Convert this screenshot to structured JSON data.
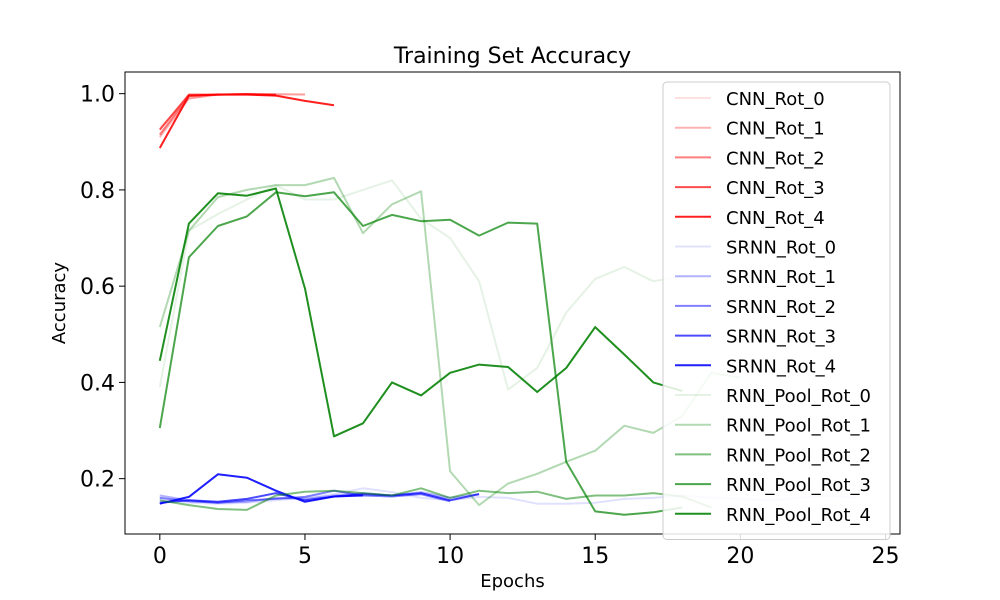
{
  "chart_data": {
    "type": "line",
    "title": "Training Set Accuracy",
    "xlabel": "Epochs",
    "ylabel": "Accuracy",
    "xlim": [
      -1.2,
      25.5
    ],
    "ylim": [
      0.085,
      1.045
    ],
    "xticks": [
      0,
      5,
      10,
      15,
      20,
      25
    ],
    "yticks": [
      0.2,
      0.4,
      0.6,
      0.8,
      1.0
    ],
    "ytick_labels": [
      "0.2",
      "0.4",
      "0.6",
      "0.8",
      "1.0"
    ],
    "grid": false,
    "legend_position": "top-right",
    "series": [
      {
        "name": "CNN_Rot_0",
        "color": "#ff0000",
        "opacity": 0.12,
        "x": [
          0,
          1,
          2,
          3,
          4,
          5
        ],
        "y": [
          0.93,
          0.99,
          0.999,
          0.999,
          0.998,
          0.999
        ]
      },
      {
        "name": "CNN_Rot_1",
        "color": "#ff0000",
        "opacity": 0.3,
        "x": [
          0,
          1,
          2,
          3,
          4,
          5
        ],
        "y": [
          0.91,
          0.99,
          0.998,
          0.999,
          0.999,
          0.998
        ]
      },
      {
        "name": "CNN_Rot_2",
        "color": "#ff0000",
        "opacity": 0.5,
        "x": [
          0,
          1,
          2,
          3,
          4
        ],
        "y": [
          0.915,
          0.995,
          0.998,
          0.999,
          0.998
        ]
      },
      {
        "name": "CNN_Rot_3",
        "color": "#ff0000",
        "opacity": 0.7,
        "x": [
          0,
          1,
          2,
          3,
          4
        ],
        "y": [
          0.925,
          0.998,
          0.998,
          0.999,
          0.997
        ]
      },
      {
        "name": "CNN_Rot_4",
        "color": "#ff0000",
        "opacity": 0.88,
        "x": [
          0,
          1,
          2,
          3,
          4,
          5,
          6
        ],
        "y": [
          0.887,
          0.996,
          0.998,
          0.998,
          0.996,
          0.985,
          0.976
        ]
      },
      {
        "name": "SRNN_Rot_0",
        "color": "#0000ff",
        "opacity": 0.12,
        "x": [
          0,
          1,
          2,
          3,
          4,
          5,
          6,
          7,
          8,
          9,
          10,
          11,
          12,
          13,
          14,
          15,
          16,
          17,
          18,
          19,
          20,
          21,
          22,
          23,
          24
        ],
        "y": [
          0.155,
          0.15,
          0.148,
          0.15,
          0.155,
          0.16,
          0.168,
          0.18,
          0.172,
          0.16,
          0.155,
          0.162,
          0.16,
          0.148,
          0.148,
          0.15,
          0.158,
          0.16,
          0.165,
          0.16,
          0.158,
          0.155,
          0.16,
          0.165,
          0.16
        ]
      },
      {
        "name": "SRNN_Rot_1",
        "color": "#0000ff",
        "opacity": 0.3,
        "x": [
          0,
          1,
          2,
          3,
          4,
          5,
          6,
          7,
          8,
          9,
          10,
          11
        ],
        "y": [
          0.165,
          0.155,
          0.15,
          0.152,
          0.16,
          0.158,
          0.165,
          0.17,
          0.165,
          0.172,
          0.16,
          0.168
        ]
      },
      {
        "name": "SRNN_Rot_2",
        "color": "#0000ff",
        "opacity": 0.5,
        "x": [
          0,
          1,
          2,
          3,
          4,
          5,
          6,
          7,
          8,
          9,
          10
        ],
        "y": [
          0.16,
          0.153,
          0.15,
          0.155,
          0.158,
          0.162,
          0.175,
          0.165,
          0.163,
          0.168,
          0.153
        ]
      },
      {
        "name": "SRNN_Rot_3",
        "color": "#0000ff",
        "opacity": 0.7,
        "x": [
          0,
          1,
          2,
          3,
          4,
          5,
          6,
          7,
          8,
          9,
          10,
          11
        ],
        "y": [
          0.15,
          0.155,
          0.152,
          0.158,
          0.17,
          0.155,
          0.163,
          0.168,
          0.165,
          0.17,
          0.155,
          0.168
        ]
      },
      {
        "name": "SRNN_Rot_4",
        "color": "#0000ff",
        "opacity": 0.88,
        "x": [
          0,
          1,
          2,
          3,
          4,
          5,
          6,
          7
        ],
        "y": [
          0.148,
          0.162,
          0.209,
          0.202,
          0.175,
          0.152,
          0.163,
          0.165
        ]
      },
      {
        "name": "RNN_Pool_Rot_0",
        "color": "#008000",
        "opacity": 0.1,
        "x": [
          0,
          1,
          2,
          3,
          4,
          5,
          6,
          7,
          8,
          9,
          10,
          11,
          12,
          13,
          14,
          15,
          16,
          17,
          18
        ],
        "y": [
          0.39,
          0.715,
          0.75,
          0.78,
          0.81,
          0.78,
          0.78,
          0.8,
          0.82,
          0.74,
          0.7,
          0.61,
          0.385,
          0.43,
          0.545,
          0.615,
          0.64,
          0.61,
          0.62
        ]
      },
      {
        "name": "RNN_Pool_Rot_1",
        "color": "#008000",
        "opacity": 0.3,
        "x": [
          0,
          1,
          2,
          3,
          4,
          5,
          6,
          7,
          8,
          9,
          10,
          11,
          12,
          13,
          14,
          15,
          16,
          17,
          18,
          19,
          20
        ],
        "y": [
          0.515,
          0.715,
          0.785,
          0.8,
          0.81,
          0.81,
          0.825,
          0.71,
          0.77,
          0.797,
          0.215,
          0.145,
          0.19,
          0.21,
          0.235,
          0.258,
          0.31,
          0.295,
          0.33,
          0.42,
          0.41
        ]
      },
      {
        "name": "RNN_Pool_Rot_2",
        "color": "#008000",
        "opacity": 0.5,
        "x": [
          0,
          1,
          2,
          3,
          4,
          5,
          6,
          7,
          8,
          9,
          10,
          11,
          12,
          13,
          14,
          15,
          16,
          17,
          18,
          19
        ],
        "y": [
          0.155,
          0.145,
          0.137,
          0.135,
          0.165,
          0.173,
          0.175,
          0.17,
          0.165,
          0.18,
          0.16,
          0.175,
          0.17,
          0.173,
          0.158,
          0.165,
          0.165,
          0.17,
          0.163,
          0.14
        ]
      },
      {
        "name": "RNN_Pool_Rot_3",
        "color": "#008000",
        "opacity": 0.7,
        "x": [
          0,
          1,
          2,
          3,
          4,
          5,
          6,
          7,
          8,
          9,
          10,
          11,
          12,
          13,
          14,
          15,
          16,
          17,
          18
        ],
        "y": [
          0.305,
          0.66,
          0.725,
          0.745,
          0.795,
          0.787,
          0.795,
          0.725,
          0.748,
          0.735,
          0.738,
          0.705,
          0.732,
          0.73,
          0.235,
          0.132,
          0.125,
          0.13,
          0.14
        ]
      },
      {
        "name": "RNN_Pool_Rot_4",
        "color": "#008000",
        "opacity": 0.88,
        "x": [
          0,
          1,
          2,
          3,
          4,
          5,
          6,
          7,
          8,
          9,
          10,
          11,
          12,
          13,
          14,
          15,
          16,
          17,
          18
        ],
        "y": [
          0.445,
          0.73,
          0.793,
          0.788,
          0.803,
          0.595,
          0.288,
          0.315,
          0.4,
          0.373,
          0.42,
          0.437,
          0.432,
          0.38,
          0.43,
          0.515,
          0.458,
          0.4,
          0.382
        ]
      }
    ]
  }
}
